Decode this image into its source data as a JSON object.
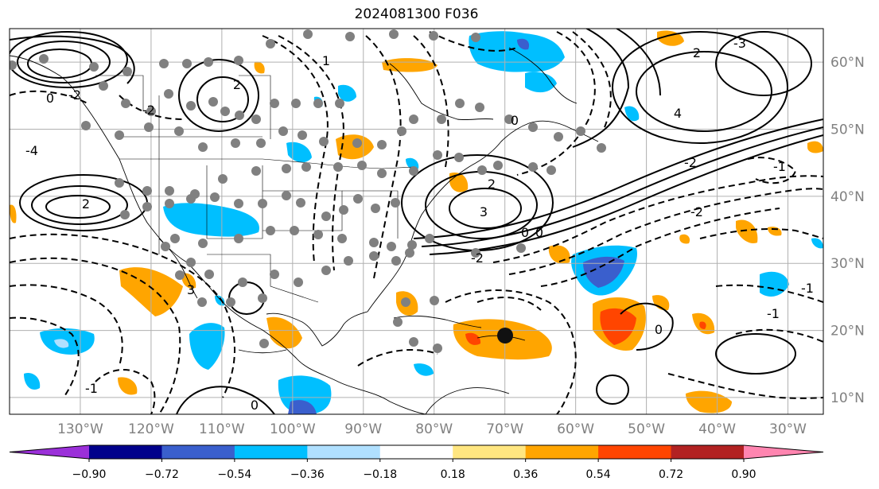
{
  "title": "2024081300 F036",
  "map": {
    "lon_range": [
      -140,
      -25
    ],
    "lat_range": [
      7.5,
      65
    ],
    "lon_ticks": [
      "130°W",
      "120°W",
      "110°W",
      "100°W",
      "90°W",
      "80°W",
      "70°W",
      "60°W",
      "50°W",
      "40°W",
      "30°W"
    ],
    "lat_ticks": [
      "10°N",
      "20°N",
      "30°N",
      "40°N",
      "50°N",
      "60°N"
    ],
    "grid": true,
    "contour_labels": [
      "1",
      "2",
      "2",
      "3",
      "4",
      "0",
      "0",
      "2",
      "2",
      "3",
      "0",
      "-1",
      "-2",
      "-2",
      "-3",
      "-4",
      "-2",
      "-2",
      "-1",
      "0",
      "-2",
      "0",
      "-1",
      "-1",
      "0"
    ]
  },
  "colorbar": {
    "ticks": [
      "−0.90",
      "−0.72",
      "−0.54",
      "−0.36",
      "−0.18",
      "0.18",
      "0.36",
      "0.54",
      "0.72",
      "0.90"
    ],
    "colors": [
      "#9b30d9",
      "#00008b",
      "#3a5fcd",
      "#00bfff",
      "#b0e0ff",
      "#ffffff",
      "#ffe680",
      "#ffa500",
      "#ff4500",
      "#b22222",
      "#ff85b0"
    ]
  },
  "markers": {
    "gray_dot_color": "#808080",
    "storm_dot_color": "#111111"
  }
}
